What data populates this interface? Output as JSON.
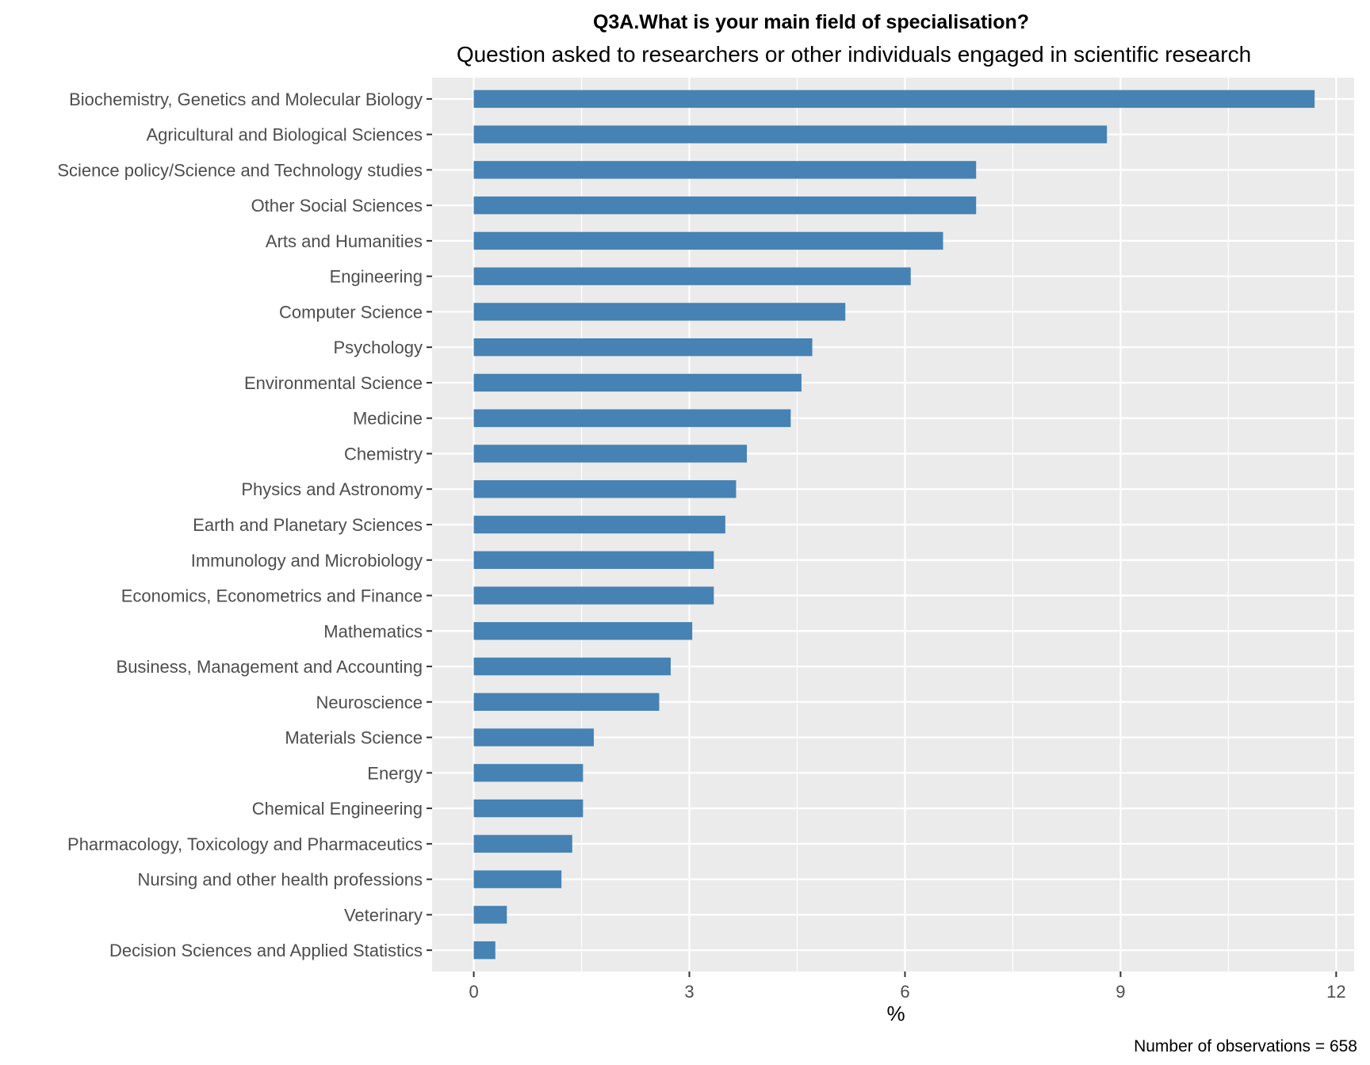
{
  "chart_data": {
    "type": "bar",
    "orientation": "horizontal",
    "title": "Q3A.What is your main field of specialisation?",
    "subtitle": "Question asked to researchers or other individuals engaged in scientific research",
    "xlabel": "%",
    "ylabel": "",
    "caption": "Number of observations = 658",
    "xlim": [
      -0.58,
      12.25
    ],
    "xticks": [
      0,
      3,
      6,
      9,
      12
    ],
    "grid": true,
    "bar_color": "#4682b4",
    "panel_background": "#ebebeb",
    "categories": [
      "Biochemistry, Genetics and Molecular Biology",
      "Agricultural and Biological Sciences",
      "Science policy/Science and Technology  studies",
      "Other Social Sciences",
      "Arts and Humanities",
      "Engineering",
      "Computer Science",
      "Psychology",
      "Environmental Science",
      "Medicine",
      "Chemistry",
      "Physics and Astronomy",
      "Earth and Planetary Sciences",
      "Immunology and Microbiology",
      "Economics, Econometrics and Finance",
      "Mathematics",
      "Business, Management and Accounting",
      "Neuroscience",
      "Materials Science",
      "Energy",
      "Chemical Engineering",
      "Pharmacology, Toxicology and Pharmaceutics",
      "Nursing and other health professions",
      "Veterinary",
      "Decision Sciences and Applied Statistics"
    ],
    "values": [
      11.7,
      8.81,
      6.99,
      6.99,
      6.53,
      6.08,
      5.17,
      4.71,
      4.56,
      4.41,
      3.8,
      3.65,
      3.5,
      3.34,
      3.34,
      3.04,
      2.74,
      2.58,
      1.67,
      1.52,
      1.52,
      1.37,
      1.22,
      0.46,
      0.3
    ]
  }
}
